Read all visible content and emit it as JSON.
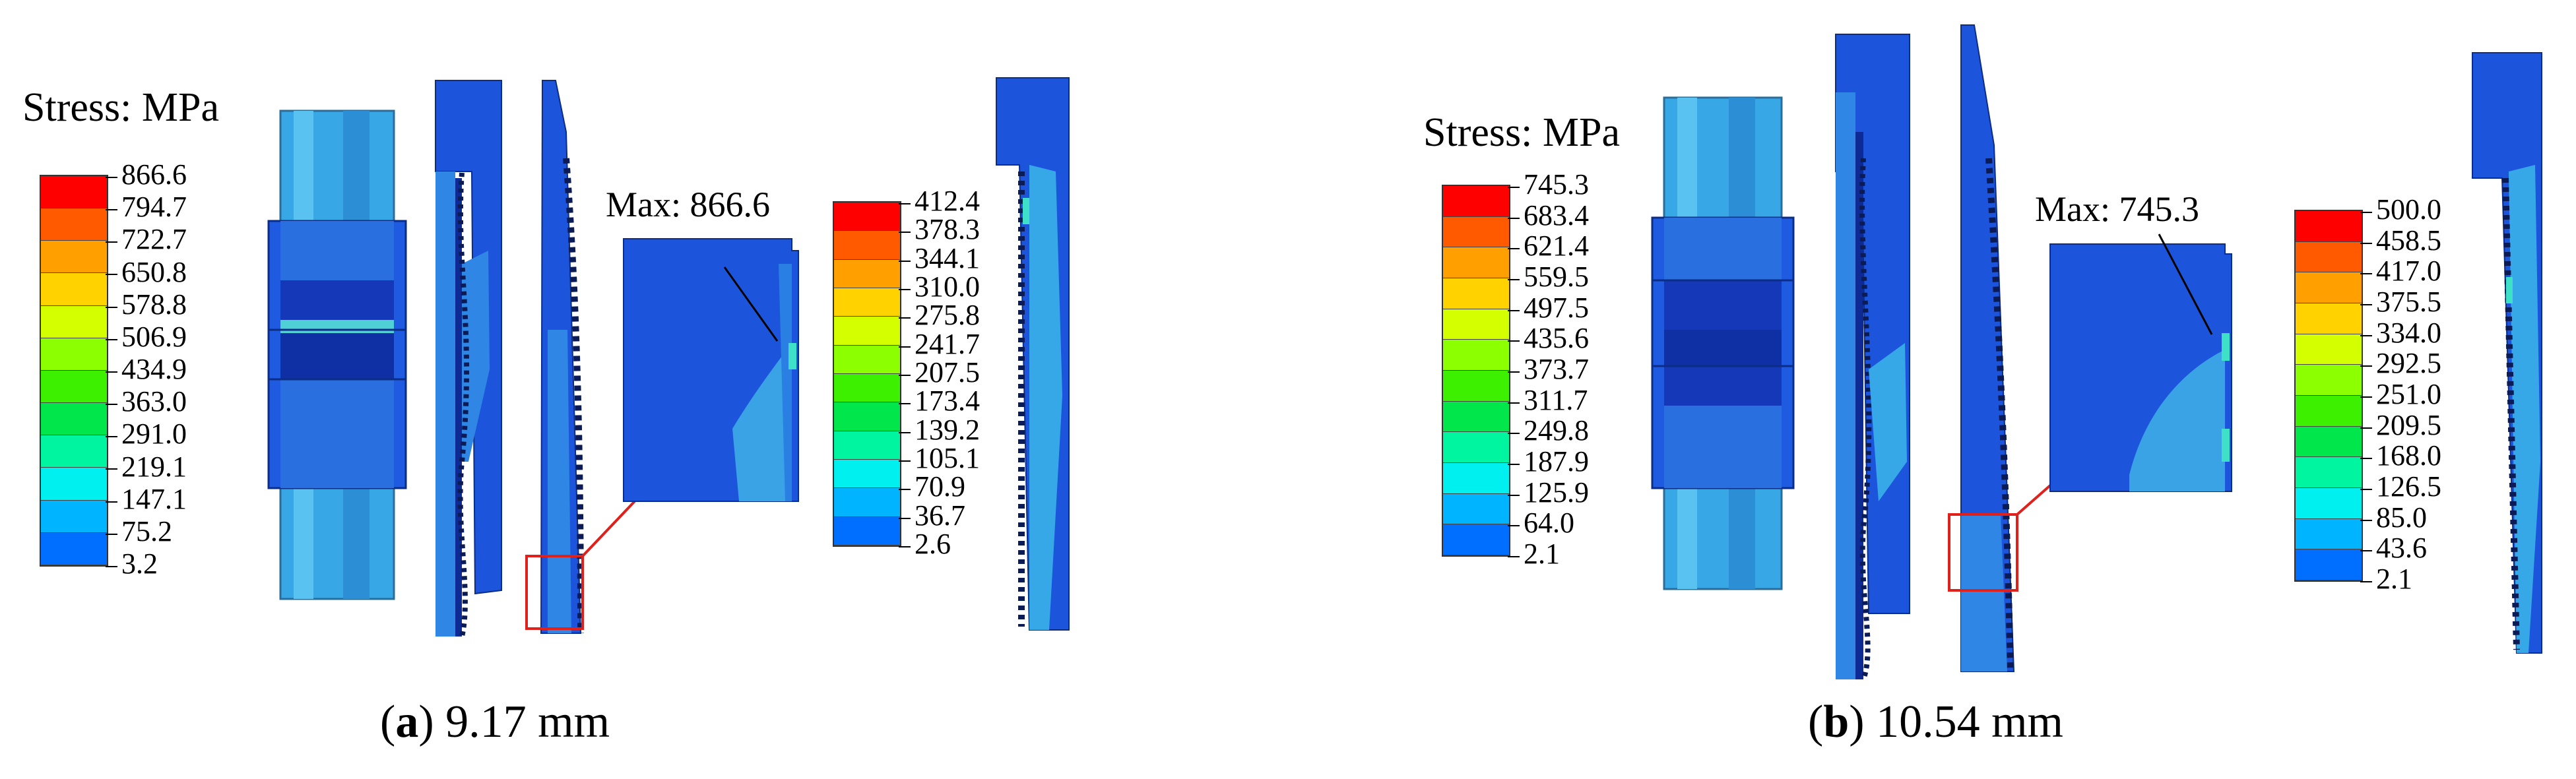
{
  "panels": [
    {
      "id": "a",
      "stress_title": "Stress: MPa",
      "global_legend": {
        "values": [
          "866.6",
          "794.7",
          "722.7",
          "650.8",
          "578.8",
          "506.9",
          "434.9",
          "363.0",
          "291.0",
          "219.1",
          "147.1",
          "75.2",
          "3.2"
        ],
        "colors": [
          "#ff0000",
          "#ff5a00",
          "#ffa000",
          "#ffd200",
          "#d4ff00",
          "#8cff00",
          "#3cf000",
          "#00e64b",
          "#00f5a0",
          "#00f0f0",
          "#00b4ff",
          "#006eff",
          "#0000ff"
        ]
      },
      "local_legend": {
        "values": [
          "412.4",
          "378.3",
          "344.1",
          "310.0",
          "275.8",
          "241.7",
          "207.5",
          "173.4",
          "139.2",
          "105.1",
          "70.9",
          "36.7",
          "2.6"
        ],
        "colors": [
          "#ff0000",
          "#ff5a00",
          "#ffa000",
          "#ffd200",
          "#d4ff00",
          "#8cff00",
          "#3cf000",
          "#00e64b",
          "#00f5a0",
          "#00f0f0",
          "#00b4ff",
          "#006eff",
          "#0000ff"
        ]
      },
      "max_label": "Max: 866.6",
      "caption_letter": "a",
      "caption_value": "9.17 mm"
    },
    {
      "id": "b",
      "stress_title": "Stress: MPa",
      "global_legend": {
        "values": [
          "745.3",
          "683.4",
          "621.4",
          "559.5",
          "497.5",
          "435.6",
          "373.7",
          "311.7",
          "249.8",
          "187.9",
          "125.9",
          "64.0",
          "2.1"
        ],
        "colors": [
          "#ff0000",
          "#ff5a00",
          "#ffa000",
          "#ffd200",
          "#d4ff00",
          "#8cff00",
          "#3cf000",
          "#00e64b",
          "#00f5a0",
          "#00f0f0",
          "#00b4ff",
          "#006eff",
          "#0000ff"
        ]
      },
      "local_legend": {
        "values": [
          "500.0",
          "458.5",
          "417.0",
          "375.5",
          "334.0",
          "292.5",
          "251.0",
          "209.5",
          "168.0",
          "126.5",
          "85.0",
          "43.6",
          "2.1"
        ],
        "colors": [
          "#ff0000",
          "#ff5a00",
          "#ffa000",
          "#ffd200",
          "#d4ff00",
          "#8cff00",
          "#3cf000",
          "#00e64b",
          "#00f5a0",
          "#00f0f0",
          "#00b4ff",
          "#006eff",
          "#0000ff"
        ]
      },
      "max_label": "Max: 745.3",
      "caption_letter": "b",
      "caption_value": "10.54 mm"
    }
  ],
  "colors": {
    "model_blue": "#1a4fd8",
    "model_mid": "#2b78e4",
    "model_light": "#36a8e8",
    "model_dark": "#0a2a9a",
    "annotation_red": "#e0201a"
  }
}
